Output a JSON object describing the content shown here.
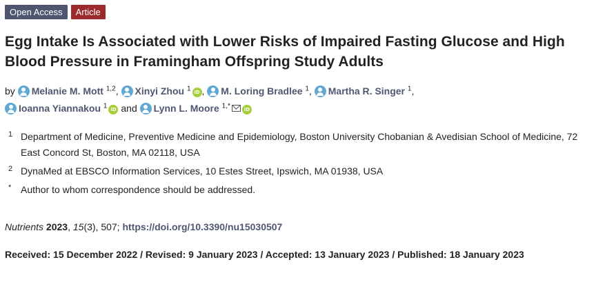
{
  "badges": {
    "open_access": "Open Access",
    "article": "Article"
  },
  "colors": {
    "open_access_badge": "#4f5671",
    "article_badge": "#9b2b2c",
    "author_link": "#4f5671",
    "person_icon": "#5fa8d3",
    "orcid_icon": "#a6ce39"
  },
  "title": "Egg Intake Is Associated with Lower Risks of Impaired Fasting Glucose and High Blood Pressure in Framingham Offspring Study Adults",
  "authors": {
    "by": "by",
    "and": "and",
    "list": [
      {
        "name": "Melanie M. Mott",
        "sup": "1,2",
        "orcid": false,
        "email": false
      },
      {
        "name": "Xinyi Zhou",
        "sup": "1",
        "orcid": true,
        "email": false
      },
      {
        "name": "M. Loring Bradlee",
        "sup": "1",
        "orcid": false,
        "email": false
      },
      {
        "name": "Martha R. Singer",
        "sup": "1",
        "orcid": false,
        "email": false
      },
      {
        "name": "Ioanna Yiannakou",
        "sup": "1",
        "orcid": true,
        "email": false
      },
      {
        "name": "Lynn L. Moore",
        "sup": "1,*",
        "orcid": true,
        "email": true
      }
    ],
    "icons": {
      "person": "person-icon",
      "orcid": "orcid-icon",
      "email": "mail-icon"
    },
    "orcid_label": "iD"
  },
  "affiliations": [
    {
      "num": "1",
      "text": "Department of Medicine, Preventive Medicine and Epidemiology, Boston University Chobanian & Avedisian School of Medicine, 72 East Concord St, Boston, MA 02118, USA"
    },
    {
      "num": "2",
      "text": "DynaMed at EBSCO Information Services, 10 Estes Street, Ipswich, MA 01938, USA"
    },
    {
      "num": "*",
      "text": "Author to whom correspondence should be addressed."
    }
  ],
  "citation": {
    "journal": "Nutrients",
    "year": "2023",
    "volume": "15",
    "issue_pages": "(3), 507;",
    "doi": "https://doi.org/10.3390/nu15030507"
  },
  "dates": "Received: 15 December 2022 / Revised: 9 January 2023 / Accepted: 13 January 2023 / Published: 18 January 2023"
}
